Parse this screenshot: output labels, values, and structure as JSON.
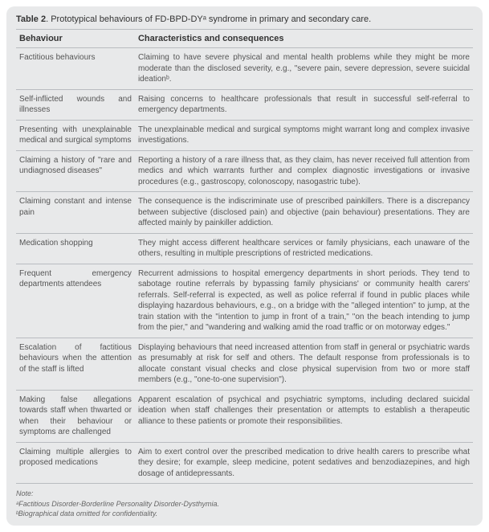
{
  "table": {
    "title_prefix": "Table 2",
    "title_rest": ". Prototypical behaviours of FD-BPD-DYᵃ syndrome in primary and secondary care.",
    "headers": {
      "behaviour": "Behaviour",
      "characteristics": "Characteristics and consequences"
    },
    "rows": [
      {
        "behaviour": "Factitious behaviours",
        "characteristics": "Claiming to have severe physical and mental health problems while they might be more moderate than the disclosed severity, e.g., \"severe pain, severe depression, severe suicidal ideationᵇ."
      },
      {
        "behaviour": "Self-inflicted wounds and illnesses",
        "characteristics": "Raising concerns to healthcare professionals that result in successful self-referral to emergency departments."
      },
      {
        "behaviour": "Presenting with unexplainable medical and surgical symptoms",
        "characteristics": "The unexplainable medical and surgical symptoms might warrant long and complex invasive investigations."
      },
      {
        "behaviour": "Claiming a history of \"rare and undiagnosed diseases\"",
        "characteristics": "Reporting a history of a rare illness that, as they claim, has never received full attention from medics and which warrants further and complex diagnostic investigations or invasive procedures (e.g., gastroscopy, colonoscopy, nasogastric tube)."
      },
      {
        "behaviour": "Claiming constant and intense pain",
        "characteristics": "The consequence is the indiscriminate use of prescribed painkillers. There is a discrepancy between subjective (disclosed pain) and objective (pain behaviour) presentations. They are affected mainly by painkiller addiction."
      },
      {
        "behaviour": "Medication shopping",
        "characteristics": "They might access different healthcare services or family physicians, each unaware of the others, resulting in multiple prescriptions of restricted medications."
      },
      {
        "behaviour": "Frequent emergency departments attendees",
        "characteristics": "Recurrent admissions to hospital emergency departments in short periods. They tend to sabotage routine referrals by bypassing family physicians' or community health carers' referrals. Self-referral is expected, as well as police referral if found in public places while displaying hazardous behaviours, e.g., on a bridge with the \"alleged intention\" to jump, at the train station with the \"intention to jump in front of a train,\" \"on the beach intending to jump from the pier,\" and \"wandering and walking amid the road traffic or on motorway edges.\""
      },
      {
        "behaviour": "Escalation of factitious behaviours when the attention of the staff is lifted",
        "characteristics": "Displaying behaviours that need increased attention from staff in general or psychiatric wards as presumably at risk for self and others. The default response from professionals is to allocate constant visual checks and close physical supervision from two or more staff members (e.g., \"one-to-one supervision\")."
      },
      {
        "behaviour": "Making false allegations towards staff when thwarted or when their behaviour or symptoms are challenged",
        "characteristics": "Apparent escalation of psychical and psychiatric symptoms, including declared suicidal ideation when staff challenges their presentation or attempts to establish a therapeutic alliance to these patients or promote their responsibilities."
      },
      {
        "behaviour": "Claiming multiple allergies to proposed medications",
        "characteristics": "Aim to exert control over the prescribed medication to drive health carers to prescribe what they desire; for example, sleep medicine, potent sedatives and benzodiazepines, and high dosage of antidepressants."
      }
    ],
    "note": {
      "label": "Note:",
      "line_a": "ᵃFactitious Disorder-Borderline Personality Disorder-Dysthymia.",
      "line_b": "ᵇBiographical data omitted for confidentiality."
    }
  },
  "style": {
    "background": "#e8e9ea",
    "border_color": "#b9bcc0",
    "text_color": "#555555",
    "header_color": "#333333",
    "title_fontsize": 11,
    "header_fontsize": 11,
    "cell_fontsize": 10,
    "note_fontsize": 9,
    "border_radius": 10,
    "col_widths": [
      "26%",
      "74%"
    ]
  }
}
